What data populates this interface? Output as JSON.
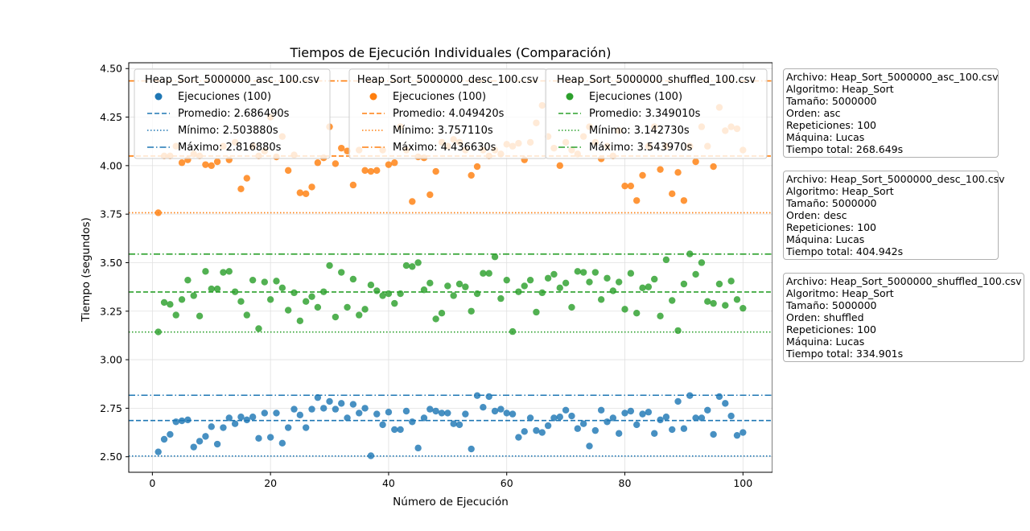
{
  "chart_data": {
    "type": "scatter",
    "title": "Tiempos de Ejecución Individuales (Comparación)",
    "xlabel": "Número de Ejecución",
    "ylabel": "Tiempo (segundos)",
    "xlim": [
      -4,
      105
    ],
    "ylim": [
      2.42,
      4.53
    ],
    "xticks": [
      0,
      20,
      40,
      60,
      80,
      100
    ],
    "yticks": [
      2.5,
      2.75,
      3.0,
      3.25,
      3.5,
      3.75,
      4.0,
      4.25,
      4.5
    ],
    "grid": true,
    "legend_placement": "top",
    "series": [
      {
        "name": "Heap_Sort_5000000_asc_100.csv",
        "color": "#1f77b4",
        "scatter_label": "Ejecuciones (100)",
        "mean_label": "Promedio: 2.686490s",
        "min_label": "Mínimo: 2.503880s",
        "max_label": "Máximo: 2.816880s",
        "mean": 2.68649,
        "min": 2.50388,
        "max": 2.81688,
        "values": [
          2.525,
          2.59,
          2.615,
          2.68,
          2.685,
          2.69,
          2.55,
          2.58,
          2.605,
          2.655,
          2.565,
          2.65,
          2.7,
          2.67,
          2.705,
          2.69,
          2.705,
          2.595,
          2.725,
          2.6,
          2.725,
          2.57,
          2.65,
          2.745,
          2.715,
          2.65,
          2.745,
          2.805,
          2.75,
          2.785,
          2.745,
          2.775,
          2.7,
          2.77,
          2.725,
          2.75,
          2.505,
          2.72,
          2.665,
          2.73,
          2.64,
          2.64,
          2.735,
          2.68,
          2.545,
          2.7,
          2.745,
          2.735,
          2.725,
          2.725,
          2.67,
          2.665,
          2.72,
          2.54,
          2.815,
          2.755,
          2.81,
          2.735,
          2.745,
          2.725,
          2.72,
          2.6,
          2.63,
          2.7,
          2.635,
          2.625,
          2.66,
          2.7,
          2.705,
          2.74,
          2.71,
          2.645,
          2.67,
          2.555,
          2.635,
          2.74,
          2.68,
          2.7,
          2.62,
          2.725,
          2.735,
          2.665,
          2.72,
          2.73,
          2.62,
          2.69,
          2.705,
          2.64,
          2.785,
          2.645,
          2.815,
          2.7,
          2.7,
          2.74,
          2.615,
          2.81,
          2.775,
          2.71,
          2.61,
          2.625
        ]
      },
      {
        "name": "Heap_Sort_5000000_desc_100.csv",
        "color": "#ff7f0e",
        "scatter_label": "Ejecuciones (100)",
        "mean_label": "Promedio: 4.049420s",
        "min_label": "Mínimo: 3.757110s",
        "max_label": "Máximo: 4.436630s",
        "mean": 4.04942,
        "min": 3.75711,
        "max": 4.43663,
        "values": [
          3.757,
          4.05,
          4.05,
          4.1,
          4.015,
          4.03,
          4.06,
          4.05,
          4.005,
          4.0,
          4.02,
          4.1,
          4.03,
          4.12,
          3.88,
          3.935,
          4.1,
          4.05,
          4.075,
          4.25,
          4.045,
          4.15,
          3.975,
          4.055,
          3.86,
          3.855,
          3.89,
          4.015,
          4.04,
          4.2,
          4.01,
          4.09,
          4.075,
          3.9,
          4.08,
          3.975,
          3.97,
          3.975,
          4.08,
          4.005,
          4.015,
          4.2,
          4.08,
          3.815,
          4.045,
          4.04,
          3.85,
          3.97,
          4.12,
          4.1,
          4.135,
          4.12,
          4.08,
          3.95,
          3.995,
          4.08,
          4.05,
          4.08,
          4.06,
          4.11,
          4.1,
          4.115,
          4.03,
          4.12,
          4.22,
          4.31,
          4.15,
          4.09,
          4.0,
          4.12,
          4.08,
          4.06,
          4.15,
          4.2,
          4.12,
          4.035,
          4.1,
          4.05,
          4.18,
          3.895,
          3.895,
          3.82,
          3.95,
          4.1,
          4.2,
          3.98,
          4.1,
          3.855,
          3.965,
          3.82,
          4.1,
          4.02,
          4.2,
          4.1,
          3.995,
          4.3,
          4.18,
          4.2,
          4.19,
          4.08
        ]
      },
      {
        "name": "Heap_Sort_5000000_shuffled_100.csv",
        "color": "#2ca02c",
        "scatter_label": "Ejecuciones (100)",
        "mean_label": "Promedio: 3.349010s",
        "min_label": "Mínimo: 3.142730s",
        "max_label": "Máximo: 3.543970s",
        "mean": 3.34901,
        "min": 3.14273,
        "max": 3.54397,
        "values": [
          3.143,
          3.295,
          3.285,
          3.23,
          3.31,
          3.41,
          3.33,
          3.225,
          3.455,
          3.365,
          3.365,
          3.45,
          3.455,
          3.35,
          3.3,
          3.23,
          3.41,
          3.16,
          3.4,
          3.31,
          3.405,
          3.37,
          3.255,
          3.345,
          3.2,
          3.3,
          3.325,
          3.27,
          3.35,
          3.485,
          3.22,
          3.45,
          3.27,
          3.415,
          3.23,
          3.26,
          3.385,
          3.355,
          3.33,
          3.34,
          3.29,
          3.34,
          3.485,
          3.48,
          3.5,
          3.36,
          3.395,
          3.21,
          3.24,
          3.38,
          3.33,
          3.39,
          3.375,
          3.25,
          3.34,
          3.445,
          3.445,
          3.53,
          3.315,
          3.41,
          3.145,
          3.35,
          3.38,
          3.41,
          3.245,
          3.345,
          3.42,
          3.44,
          3.37,
          3.395,
          3.27,
          3.455,
          3.45,
          3.4,
          3.45,
          3.31,
          3.42,
          3.355,
          3.4,
          3.26,
          3.445,
          3.24,
          3.37,
          3.375,
          3.415,
          3.225,
          3.515,
          3.305,
          3.15,
          3.39,
          3.545,
          3.44,
          3.5,
          3.3,
          3.29,
          3.39,
          3.28,
          3.405,
          3.31,
          3.265
        ]
      }
    ]
  },
  "info_boxes": [
    {
      "lines": [
        "Archivo: Heap_Sort_5000000_asc_100.csv",
        "Algoritmo: Heap_Sort",
        "Tamaño: 5000000",
        "Orden: asc",
        "Repeticiones: 100",
        "Máquina: Lucas",
        "Tiempo total: 268.649s"
      ]
    },
    {
      "lines": [
        "Archivo: Heap_Sort_5000000_desc_100.csv",
        "Algoritmo: Heap_Sort",
        "Tamaño: 5000000",
        "Orden: desc",
        "Repeticiones: 100",
        "Máquina: Lucas",
        "Tiempo total: 404.942s"
      ]
    },
    {
      "lines": [
        "Archivo: Heap_Sort_5000000_shuffled_100.csv",
        "Algoritmo: Heap_Sort",
        "Tamaño: 5000000",
        "Orden: shuffled",
        "Repeticiones: 100",
        "Máquina: Lucas",
        "Tiempo total: 334.901s"
      ]
    }
  ]
}
